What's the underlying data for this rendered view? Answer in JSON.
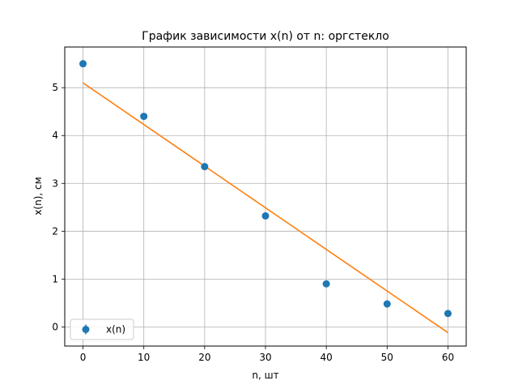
{
  "chart_data": {
    "type": "scatter",
    "title": "График зависимости x(n) от n: оргстекло",
    "xlabel": "n, шт",
    "ylabel": "x(n), см",
    "xlim": [
      -3,
      63
    ],
    "ylim": [
      -0.4,
      5.85
    ],
    "xticks": [
      0,
      10,
      20,
      30,
      40,
      50,
      60
    ],
    "yticks": [
      0,
      1,
      2,
      3,
      4,
      5
    ],
    "grid": true,
    "legend_position": "lower-left",
    "series": [
      {
        "name": "x(n)",
        "kind": "errorbar-points",
        "color": "#1f77b4",
        "x": [
          0,
          10,
          20,
          30,
          40,
          50,
          60
        ],
        "y": [
          5.5,
          4.4,
          3.35,
          2.32,
          0.9,
          0.48,
          0.28
        ],
        "yerr": [
          0.07,
          0.07,
          0.07,
          0.07,
          0.07,
          0.07,
          0.07
        ]
      },
      {
        "kind": "line",
        "color": "#ff7f0e",
        "x": [
          0,
          60
        ],
        "y": [
          5.1,
          -0.12
        ]
      }
    ]
  }
}
